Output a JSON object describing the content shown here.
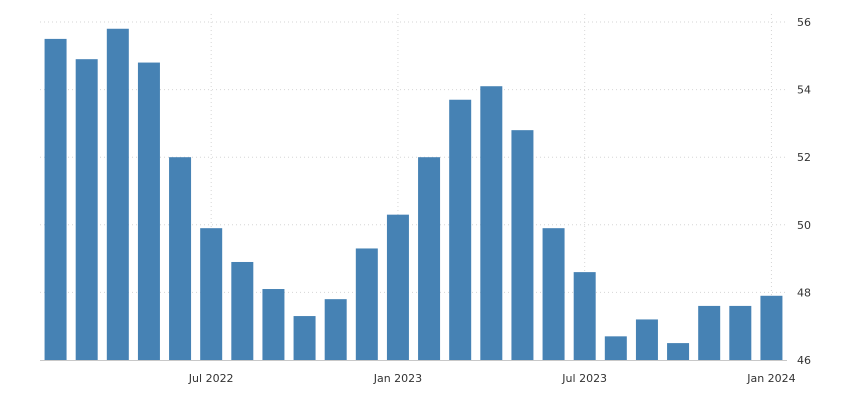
{
  "chart_data": {
    "type": "bar",
    "title": "",
    "xlabel": "",
    "ylabel": "",
    "x": [
      "2022-02",
      "2022-03",
      "2022-04",
      "2022-05",
      "2022-06",
      "2022-07",
      "2022-08",
      "2022-09",
      "2022-10",
      "2022-11",
      "2022-12",
      "2023-01",
      "2023-02",
      "2023-03",
      "2023-04",
      "2023-05",
      "2023-06",
      "2023-07",
      "2023-08",
      "2023-09",
      "2023-10",
      "2023-11",
      "2023-12",
      "2024-01"
    ],
    "values": [
      55.5,
      54.9,
      55.8,
      54.8,
      52.0,
      49.9,
      48.9,
      48.1,
      47.3,
      47.8,
      49.3,
      50.3,
      52.0,
      53.7,
      54.1,
      52.8,
      49.9,
      48.6,
      46.7,
      47.2,
      46.5,
      47.6,
      47.6,
      47.9
    ],
    "ylim": [
      46,
      56
    ],
    "y_ticks": [
      "56",
      "54",
      "52",
      "50",
      "48",
      "46"
    ],
    "x_ticks": [
      {
        "label": "Jul 2022",
        "at": "2022-07"
      },
      {
        "label": "Jan 2023",
        "at": "2023-01"
      },
      {
        "label": "Jul 2023",
        "at": "2023-07"
      },
      {
        "label": "Jan 2024",
        "at": "2024-01"
      }
    ],
    "grid": true,
    "y_axis_side": "right",
    "colors": {
      "bar": "#4682b4",
      "grid": "#d6d6d6",
      "text": "#333333"
    }
  }
}
